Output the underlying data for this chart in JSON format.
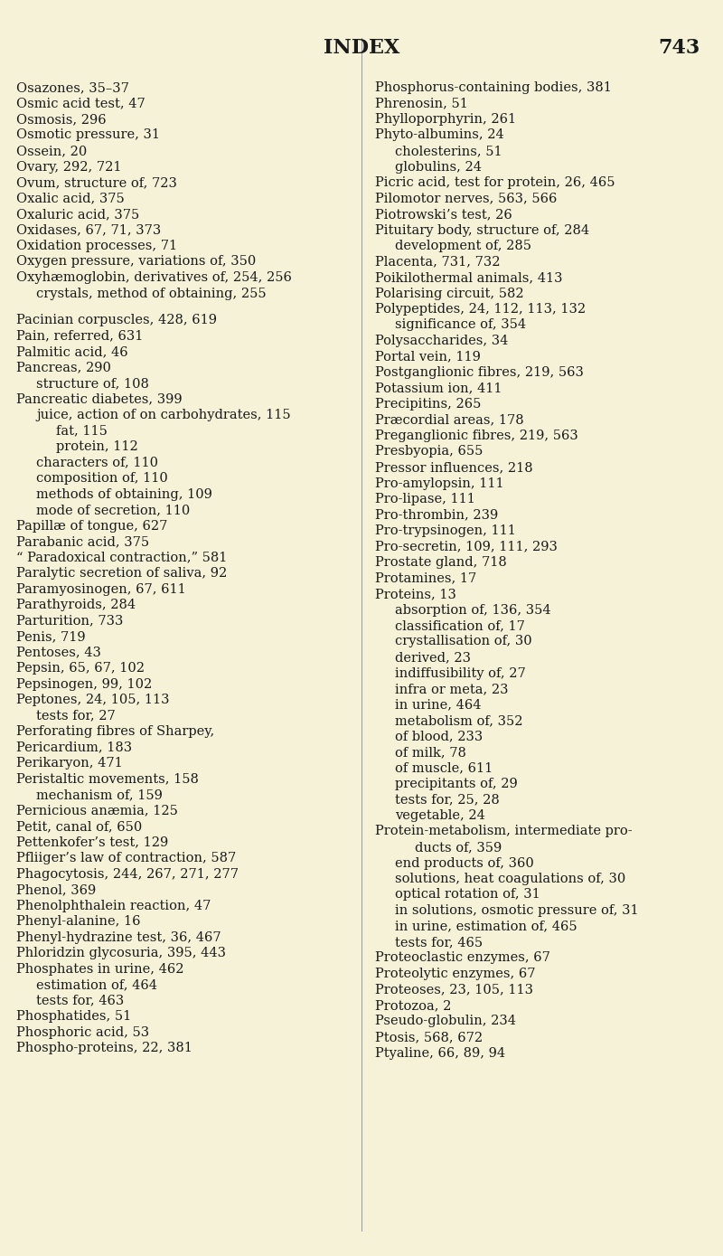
{
  "background_color": "#f5f2d8",
  "title": "INDEX",
  "page_number": "743",
  "title_fontsize": 16,
  "text_fontsize": 10.5,
  "left_column": [
    "Osazones, 35–37",
    "Osmic acid test, 47",
    "Osmosis, 296",
    "Osmotic pressure, 31",
    "Ossein, 20",
    "Ovary, 292, 721",
    "Ovum, structure of, 723",
    "Oxalic acid, 375",
    "Oxaluric acid, 375",
    "Oxidases, 67, 71, 373",
    "Oxidation processes, 71",
    "Oxygen pressure, variations of, 350",
    "Oxyhæmoglobin, derivatives of, 254, 256",
    "I    crystals, method of obtaining, 255",
    "",
    "Pacinian corpuscles, 428, 619",
    "Pain, referred, 631",
    "Palmitic acid, 46",
    "Pancreas, 290",
    "I    structure of, 108",
    "Pancreatic diabetes, 399",
    "I    juice, action of on carbohydrates, 115",
    "II        fat, 115",
    "II        protein, 112",
    "I    characters of, 110",
    "I    composition of, 110",
    "I    methods of obtaining, 109",
    "I    mode of secretion, 110",
    "Papillæ of tongue, 627",
    "Parabanic acid, 375",
    "“ Paradoxical contraction,” 581",
    "Paralytic secretion of saliva, 92",
    "Paramyosinogen, 67, 611",
    "Parathyroids, 284",
    "Parturition, 733",
    "Penis, 719",
    "Pentoses, 43",
    "Pepsin, 65, 67, 102",
    "Pepsinogen, 99, 102",
    "Peptones, 24, 105, 113",
    "I    tests for, 27",
    "Perforating fibres of Sharpey,",
    "Pericardium, 183",
    "Perikaryon, 471",
    "Peristaltic movements, 158",
    "I    mechanism of, 159",
    "Pernicious anæmia, 125",
    "Petit, canal of, 650",
    "Pettenkofer’s test, 129",
    "Pfliiger’s law of contraction, 587",
    "Phagocytosis, 244, 267, 271, 277",
    "Phenol, 369",
    "Phenolphthalein reaction, 47",
    "Phenyl-alanine, 16",
    "Phenyl-hydrazine test, 36, 467",
    "Phloridzin glycosuria, 395, 443",
    "Phosphates in urine, 462",
    "I    estimation of, 464",
    "I    tests for, 463",
    "Phosphatides, 51",
    "Phosphoric acid, 53",
    "Phospho-proteins, 22, 381"
  ],
  "right_column": [
    "Phosphorus-containing bodies, 381",
    "Phrenosin, 51",
    "Phylloporphyrin, 261",
    "Phyto-albumins, 24",
    "I    cholesterins, 51",
    "I    globulins, 24",
    "Picric acid, test for protein, 26, 465",
    "Pilomotor nerves, 563, 566",
    "Piotrowski’s test, 26",
    "Pituitary body, structure of, 284",
    "I    development of, 285",
    "Placenta, 731, 732",
    "Poikilothermal animals, 413",
    "Polarising circuit, 582",
    "Polypeptides, 24, 112, 113, 132",
    "I    significance of, 354",
    "Polysaccharides, 34",
    "Portal vein, 119",
    "Postganglionic fibres, 219, 563",
    "Potassium ion, 411",
    "Precipitins, 265",
    "Præcordial areas, 178",
    "Preganglionic fibres, 219, 563",
    "Presbyopia, 655",
    "Pressor influences, 218",
    "Pro-amylopsin, 111",
    "Pro-lipase, 111",
    "Pro-thrombin, 239",
    "Pro-trypsinogen, 111",
    "Pro-secretin, 109, 111, 293",
    "Prostate gland, 718",
    "Protamines, 17",
    "Proteins, 13",
    "I    absorption of, 136, 354",
    "I    classification of, 17",
    "I    crystallisation of, 30",
    "I    derived, 23",
    "I    indiffusibility of, 27",
    "I    infra or meta, 23",
    "I    in urine, 464",
    "I    metabolism of, 352",
    "I    of blood, 233",
    "I    of milk, 78",
    "I    of muscle, 611",
    "I    precipitants of, 29",
    "I    tests for, 25, 28",
    "I    vegetable, 24",
    "Protein-metabolism, intermediate pro-",
    "II        ducts of, 359",
    "I    end products of, 360",
    "I    solutions, heat coagulations of, 30",
    "I    optical rotation of, 31",
    "I    in solutions, osmotic pressure of, 31",
    "I    in urine, estimation of, 465",
    "I    tests for, 465",
    "Proteoclastic enzymes, 67",
    "Proteolytic enzymes, 67",
    "Proteoses, 23, 105, 113",
    "Protozoa, 2",
    "Pseudo-globulin, 234",
    "Ptosis, 568, 672",
    "Ptyaline, 66, 89, 94"
  ]
}
